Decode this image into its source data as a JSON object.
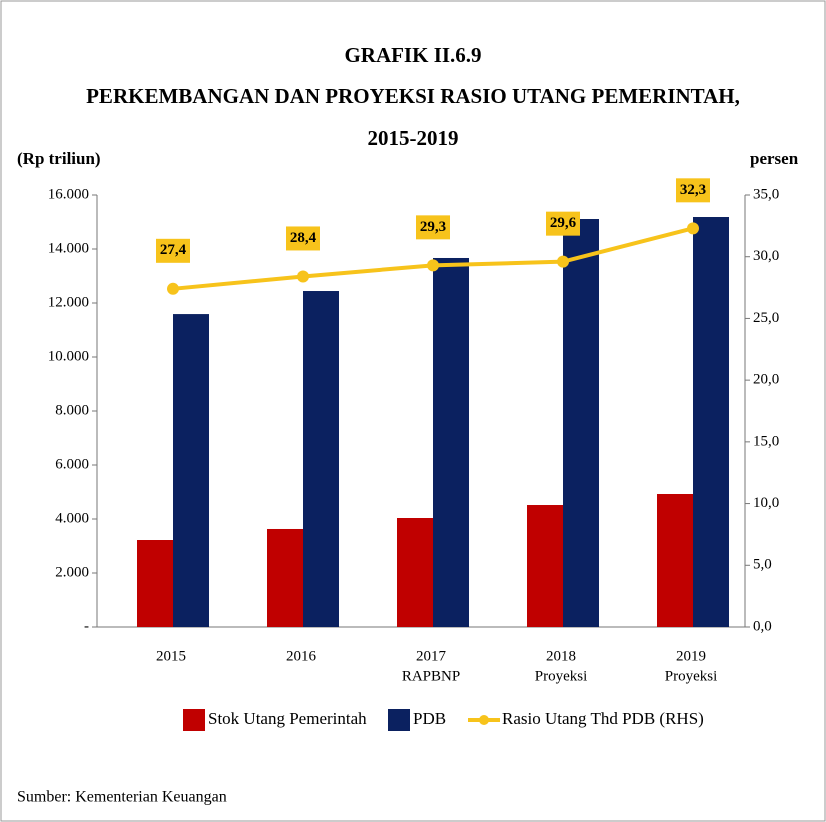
{
  "chart_data": {
    "type": "bar_line",
    "title": [
      "GRAFIK II.6.9",
      "PERKEMBANGAN DAN PROYEKSI RASIO UTANG PEMERINTAH,",
      "2015-2019"
    ],
    "y_label": "(Rp triliun)",
    "y2_label": "persen",
    "categories": [
      [
        "2015"
      ],
      [
        "2016"
      ],
      [
        "2017",
        "RAPBNP"
      ],
      [
        "2018",
        "Proyeksi"
      ],
      [
        "2019",
        "Proyeksi"
      ]
    ],
    "series": [
      {
        "name": "Stok Utang Pemerintah",
        "type": "bar",
        "color": "#c00000",
        "values": [
          3222,
          3630,
          4037,
          4518,
          4926
        ]
      },
      {
        "name": "PDB",
        "type": "bar",
        "color": "#0b2160",
        "values": [
          11590,
          12444,
          13667,
          15111,
          15185
        ]
      },
      {
        "name": "Rasio Utang Thd PDB (RHS)",
        "type": "line",
        "axis": "y2",
        "color": "#f7c31b",
        "values": [
          27.4,
          28.4,
          29.3,
          29.6,
          32.3
        ],
        "value_labels": [
          "27,4",
          "28,4",
          "29,3",
          "29,6",
          "32,3"
        ]
      }
    ],
    "ylim": [
      0,
      16000
    ],
    "yticks": [
      {
        "value": 0,
        "label": "-"
      },
      {
        "value": 2000,
        "label": "2.000"
      },
      {
        "value": 4000,
        "label": "4.000"
      },
      {
        "value": 6000,
        "label": "6.000"
      },
      {
        "value": 8000,
        "label": "8.000"
      },
      {
        "value": 10000,
        "label": "10.000"
      },
      {
        "value": 12000,
        "label": "12.000"
      },
      {
        "value": 14000,
        "label": "14.000"
      },
      {
        "value": 16000,
        "label": "16.000"
      }
    ],
    "y2lim": [
      0,
      35
    ],
    "y2ticks": [
      {
        "value": 0,
        "label": "0,0"
      },
      {
        "value": 5,
        "label": "5,0"
      },
      {
        "value": 10,
        "label": "10,0"
      },
      {
        "value": 15,
        "label": "15,0"
      },
      {
        "value": 20,
        "label": "20,0"
      },
      {
        "value": 25,
        "label": "25,0"
      },
      {
        "value": 30,
        "label": "30,0"
      },
      {
        "value": 35,
        "label": "35,0"
      }
    ],
    "source": "Sumber: Kementerian Keuangan"
  }
}
